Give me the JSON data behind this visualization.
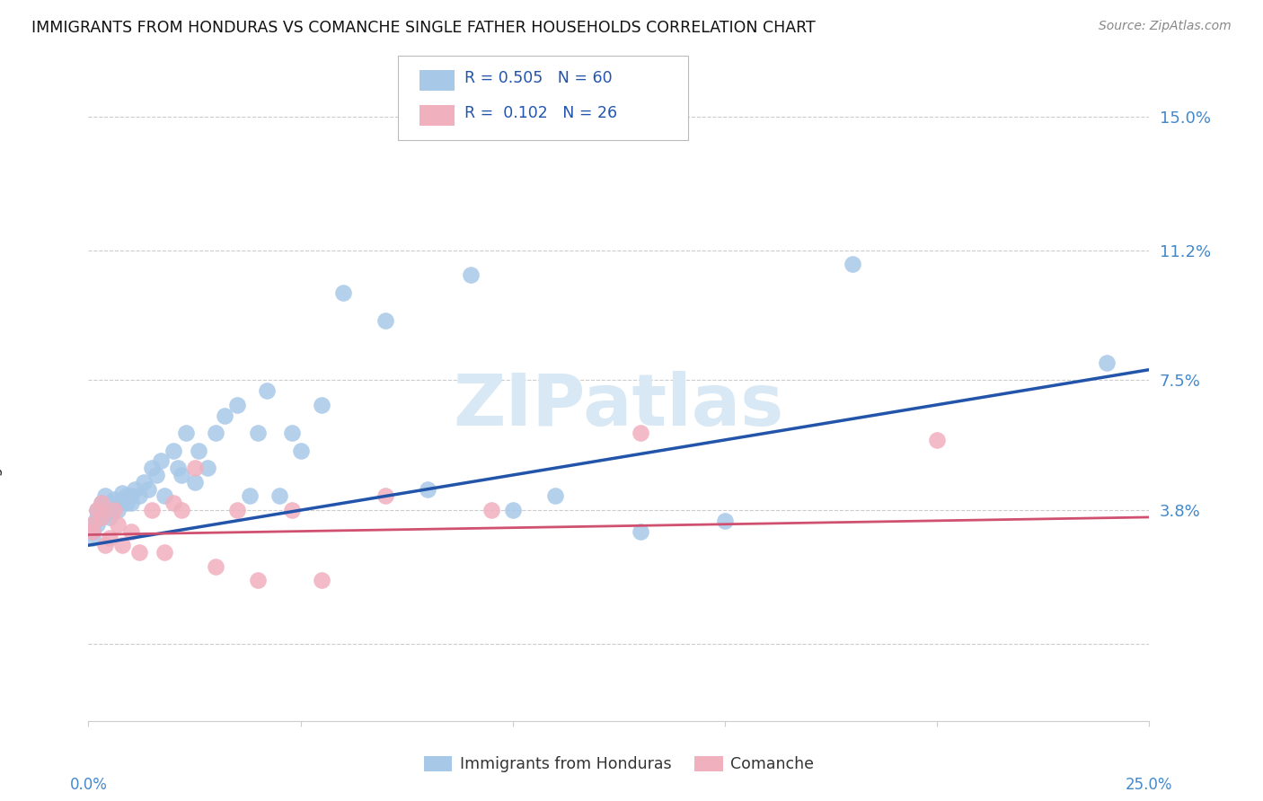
{
  "title": "IMMIGRANTS FROM HONDURAS VS COMANCHE SINGLE FATHER HOUSEHOLDS CORRELATION CHART",
  "source": "Source: ZipAtlas.com",
  "ylabel": "Single Father Households",
  "ytick_vals": [
    0.0,
    0.038,
    0.075,
    0.112,
    0.15
  ],
  "ytick_labels": [
    "",
    "3.8%",
    "7.5%",
    "11.2%",
    "15.0%"
  ],
  "xlim": [
    0.0,
    0.25
  ],
  "ylim": [
    -0.022,
    0.165
  ],
  "blue_color": "#a8c8e8",
  "pink_color": "#f0b0be",
  "blue_line_color": "#2255aa",
  "pink_line_color": "#d05070",
  "right_axis_color": "#4488cc",
  "legend_text_color": "#2255aa",
  "watermark_color": "#d8e8f4",
  "R_blue": 0.505,
  "N_blue": 60,
  "R_pink": 0.102,
  "N_pink": 26,
  "blue_line_x0": 0.0,
  "blue_line_y0": 0.028,
  "blue_line_x1": 0.25,
  "blue_line_y1": 0.078,
  "pink_line_x0": 0.0,
  "pink_line_y0": 0.031,
  "pink_line_x1": 0.25,
  "pink_line_y1": 0.036,
  "blue_x": [
    0.001,
    0.001,
    0.001,
    0.002,
    0.002,
    0.002,
    0.003,
    0.003,
    0.003,
    0.004,
    0.004,
    0.004,
    0.005,
    0.005,
    0.005,
    0.006,
    0.006,
    0.007,
    0.007,
    0.008,
    0.008,
    0.009,
    0.009,
    0.01,
    0.01,
    0.011,
    0.012,
    0.013,
    0.014,
    0.015,
    0.016,
    0.017,
    0.018,
    0.02,
    0.021,
    0.022,
    0.023,
    0.025,
    0.026,
    0.028,
    0.03,
    0.032,
    0.035,
    0.038,
    0.04,
    0.042,
    0.045,
    0.048,
    0.05,
    0.055,
    0.06,
    0.07,
    0.08,
    0.09,
    0.1,
    0.11,
    0.13,
    0.15,
    0.18,
    0.24
  ],
  "blue_y": [
    0.032,
    0.034,
    0.03,
    0.036,
    0.034,
    0.038,
    0.036,
    0.038,
    0.04,
    0.037,
    0.039,
    0.042,
    0.036,
    0.038,
    0.04,
    0.039,
    0.041,
    0.04,
    0.038,
    0.041,
    0.043,
    0.04,
    0.042,
    0.04,
    0.042,
    0.044,
    0.042,
    0.046,
    0.044,
    0.05,
    0.048,
    0.052,
    0.042,
    0.055,
    0.05,
    0.048,
    0.06,
    0.046,
    0.055,
    0.05,
    0.06,
    0.065,
    0.068,
    0.042,
    0.06,
    0.072,
    0.042,
    0.06,
    0.055,
    0.068,
    0.1,
    0.092,
    0.044,
    0.105,
    0.038,
    0.042,
    0.032,
    0.035,
    0.108,
    0.08
  ],
  "pink_x": [
    0.001,
    0.001,
    0.002,
    0.003,
    0.003,
    0.004,
    0.005,
    0.006,
    0.007,
    0.008,
    0.01,
    0.012,
    0.015,
    0.018,
    0.02,
    0.022,
    0.025,
    0.03,
    0.035,
    0.04,
    0.048,
    0.055,
    0.07,
    0.095,
    0.13,
    0.2
  ],
  "pink_y": [
    0.032,
    0.034,
    0.038,
    0.036,
    0.04,
    0.028,
    0.03,
    0.038,
    0.034,
    0.028,
    0.032,
    0.026,
    0.038,
    0.026,
    0.04,
    0.038,
    0.05,
    0.022,
    0.038,
    0.018,
    0.038,
    0.018,
    0.042,
    0.038,
    0.06,
    0.058
  ],
  "legend_label_blue": "Immigrants from Honduras",
  "legend_label_pink": "Comanche"
}
